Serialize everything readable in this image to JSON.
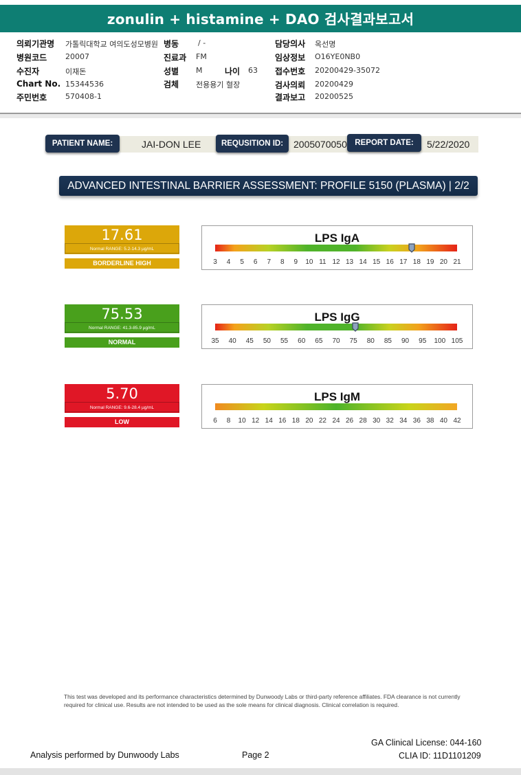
{
  "banner_title": "zonulin + histamine + DAO 검사결과보고서",
  "header": [
    {
      "key": "의뢰기관명",
      "value": "가톨릭대학교 여의도성모병원"
    },
    {
      "key": "병원코드",
      "value": "20007"
    },
    {
      "key": "수진자",
      "value": "이재돈"
    },
    {
      "key": "Chart No.",
      "value": "15344536"
    },
    {
      "key": "주민번호",
      "value": "570408-1"
    },
    {
      "key": "병동",
      "value": "/ -"
    },
    {
      "key": "진료과",
      "value": "FM"
    },
    {
      "key": "성별",
      "value": "M"
    },
    {
      "key": "나이",
      "value": "63"
    },
    {
      "key": "검체",
      "value": "전용용기 혈장"
    },
    {
      "key": "담당의사",
      "value": "옥선명"
    },
    {
      "key": "임상정보",
      "value": "O16YE0NB0"
    },
    {
      "key": "접수번호",
      "value": "20200429-35072"
    },
    {
      "key": "검사의뢰",
      "value": "20200429"
    },
    {
      "key": "결과보고",
      "value": "20200525"
    }
  ],
  "patient_info": {
    "name_label": "PATIENT NAME:",
    "name_value": "JAI-DON LEE",
    "requisition_label": "REQUSITION ID:",
    "requisition_value": "2005070050",
    "report_date_label": "REPORT DATE:",
    "report_date_value": "5/22/2020"
  },
  "section_title": "ADVANCED INTESTINAL BARRIER ASSESSMENT: PROFILE 5150 (PLASMA) | 2/2",
  "colors": {
    "banner": "#0e7e73",
    "borderline": "#dca70a",
    "normal": "#49a01c",
    "low": "#e01726",
    "navy": "#1f3350"
  },
  "results": [
    {
      "name": "LPS IgA",
      "value": "17.61",
      "value_num": 17.61,
      "range_text": "Normal RANGE: 5.2-14.3 µg/mL",
      "status": "BORDERLINE HIGH",
      "status_color": "borderline",
      "scale_min": 3,
      "scale_max": 21,
      "ticks": [
        "3",
        "4",
        "5",
        "6",
        "7",
        "8",
        "9",
        "10",
        "11",
        "12",
        "13",
        "14",
        "15",
        "16",
        "17",
        "18",
        "19",
        "20",
        "21"
      ],
      "marker": "shield-marker"
    },
    {
      "name": "LPS IgG",
      "value": "75.53",
      "value_num": 75.53,
      "range_text": "Normal RANGE: 41.3-85.9 µg/mL",
      "status": "NORMAL",
      "status_color": "normal",
      "scale_min": 35,
      "scale_max": 105,
      "ticks": [
        "35",
        "40",
        "45",
        "50",
        "55",
        "60",
        "65",
        "70",
        "75",
        "80",
        "85",
        "90",
        "95",
        "100",
        "105"
      ],
      "marker": "shield-marker"
    },
    {
      "name": "LPS IgM",
      "value": "5.70",
      "value_num": 5.7,
      "range_text": "Normal RANGE: 9.6-28.4 µg/mL",
      "status": "LOW",
      "status_color": "low",
      "scale_min": 6,
      "scale_max": 42,
      "ticks": [
        "6",
        "8",
        "10",
        "12",
        "14",
        "16",
        "18",
        "20",
        "22",
        "24",
        "26",
        "28",
        "30",
        "32",
        "34",
        "36",
        "38",
        "40",
        "42"
      ],
      "marker": "none"
    }
  ],
  "disclaimer": "This test was developed and its performance characteristics determined by Dunwoody Labs or third-party reference affiliates. FDA clearance is not currently required for clinical use. Results are not intended to be used as the sole means for clinical diagnosis. Clinical correlation is required.",
  "footer": {
    "analysis": "Analysis performed by Dunwoody Labs",
    "page": "Page 2",
    "license": "GA Clinical License: 044-160",
    "clia": "CLIA ID: 11D1101209"
  }
}
